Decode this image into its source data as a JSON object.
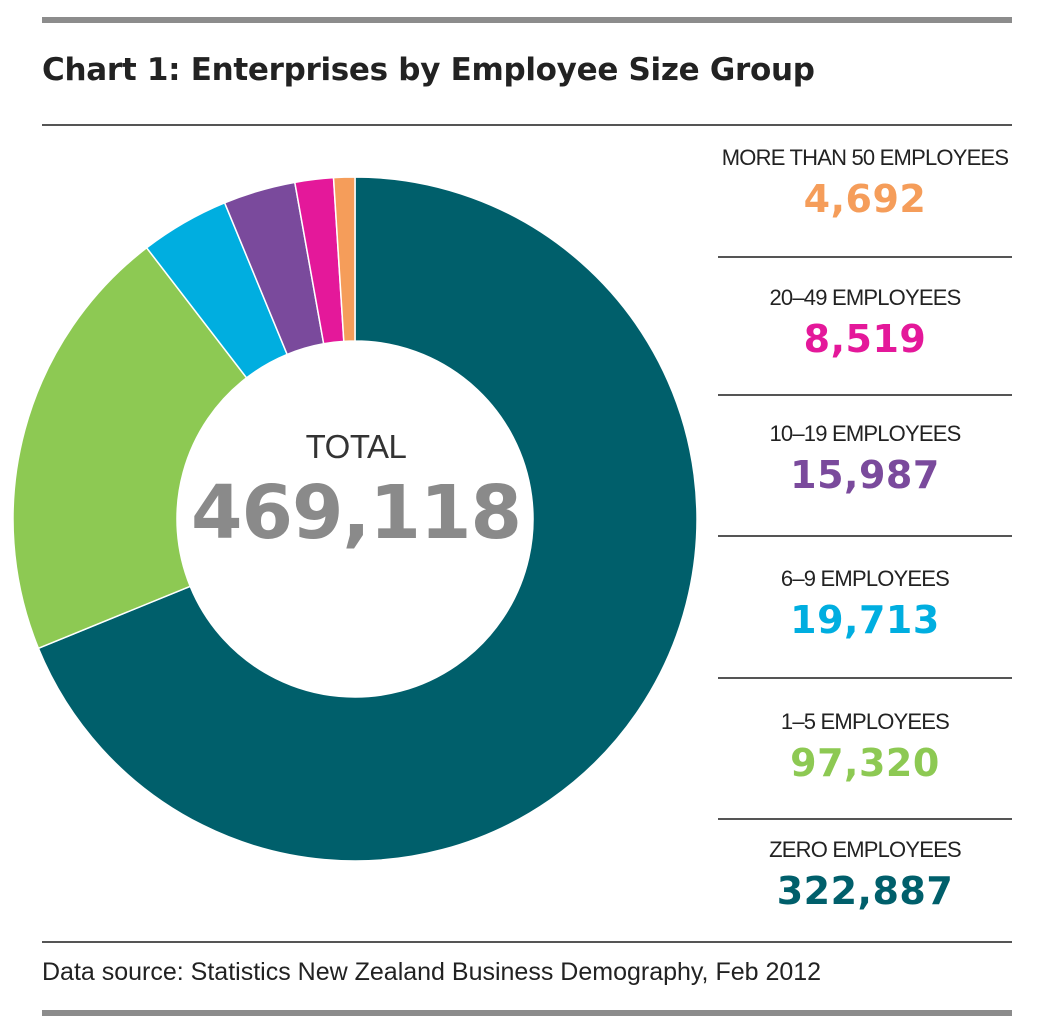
{
  "title": "Chart 1: Enterprises by Employee Size Group",
  "total": {
    "label": "TOTAL",
    "value": "469,118"
  },
  "source": "Data source: Statistics New Zealand Business Demography, Feb 2012",
  "chart_data": {
    "type": "pie",
    "title": "Chart 1: Enterprises by Employee Size Group",
    "donut": true,
    "total": 469118,
    "categories": [
      "ZERO EMPLOYEES",
      "1–5 EMPLOYEES",
      "6–9 EMPLOYEES",
      "10–19 EMPLOYEES",
      "20–49 EMPLOYEES",
      "MORE THAN 50 EMPLOYEES"
    ],
    "values": [
      322887,
      97320,
      19713,
      15987,
      8519,
      4692
    ],
    "colors": [
      "#005f6b",
      "#8dc953",
      "#00aee0",
      "#7a4a9c",
      "#e4189a",
      "#f59d5a"
    ],
    "legend_placement": "right"
  },
  "legend": [
    {
      "label": "MORE THAN 50 EMPLOYEES",
      "value": "4,692",
      "color": "#f59d5a"
    },
    {
      "label": "20–49 EMPLOYEES",
      "value": "8,519",
      "color": "#e4189a"
    },
    {
      "label": "10–19 EMPLOYEES",
      "value": "15,987",
      "color": "#7a4a9c"
    },
    {
      "label": "6–9 EMPLOYEES",
      "value": "19,713",
      "color": "#00aee0"
    },
    {
      "label": "1–5 EMPLOYEES",
      "value": "97,320",
      "color": "#8dc953"
    },
    {
      "label": "ZERO EMPLOYEES",
      "value": "322,887",
      "color": "#005f6b"
    }
  ]
}
